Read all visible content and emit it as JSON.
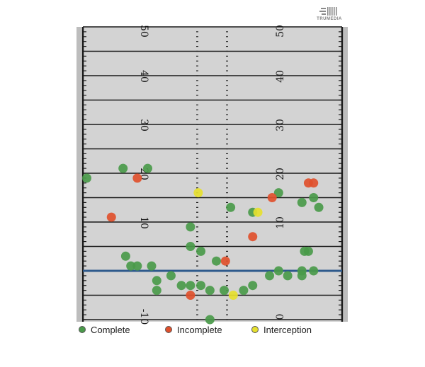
{
  "brand": {
    "name": "TRUMEDIA"
  },
  "colors": {
    "field": "#d3d3d3",
    "line": "#1a1a1a",
    "scrimmage": "#2e5a8c",
    "complete": "#4a9a4a",
    "incomplete": "#e0502c",
    "interception": "#e6e02e"
  },
  "chart_data": {
    "type": "scatter",
    "x_axis": {
      "description": "field width",
      "range": [
        -1,
        1
      ]
    },
    "y_axis": {
      "description": "yards downfield from line of scrimmage",
      "range": [
        -10,
        50
      ]
    },
    "yard_labels_left": [
      "50",
      "40",
      "30",
      "20",
      "10",
      "-10"
    ],
    "yard_labels_right": [
      "50",
      "40",
      "30",
      "20",
      "10",
      "0"
    ],
    "line_of_scrimmage": 0,
    "legend": [
      "Complete",
      "Incomplete",
      "Interception"
    ],
    "series": [
      {
        "name": "Complete",
        "points": [
          [
            -0.97,
            19.0
          ],
          [
            -0.69,
            21.0
          ],
          [
            -0.5,
            21.0
          ],
          [
            -0.67,
            3.0
          ],
          [
            -0.63,
            1.0
          ],
          [
            -0.58,
            1.0
          ],
          [
            -0.47,
            1.0
          ],
          [
            -0.43,
            -2.0
          ],
          [
            -0.43,
            -4.0
          ],
          [
            -0.32,
            -1.0
          ],
          [
            -0.24,
            -3.0
          ],
          [
            -0.17,
            -3.0
          ],
          [
            -0.09,
            -3.0
          ],
          [
            -0.17,
            5.0
          ],
          [
            -0.09,
            4.0
          ],
          [
            -0.17,
            9.0
          ],
          [
            -0.02,
            -10.0
          ],
          [
            -0.02,
            -4.0
          ],
          [
            0.03,
            2.0
          ],
          [
            0.09,
            -4.0
          ],
          [
            0.14,
            13.0
          ],
          [
            0.24,
            -4.0
          ],
          [
            0.31,
            -3.0
          ],
          [
            0.31,
            12.0
          ],
          [
            0.44,
            -1.0
          ],
          [
            0.51,
            0.0
          ],
          [
            0.51,
            16.0
          ],
          [
            0.58,
            -1.0
          ],
          [
            0.69,
            14.0
          ],
          [
            0.69,
            -1.0
          ],
          [
            0.69,
            0.0
          ],
          [
            0.71,
            4.0
          ],
          [
            0.74,
            4.0
          ],
          [
            0.78,
            15.0
          ],
          [
            0.78,
            0.0
          ],
          [
            0.82,
            13.0
          ]
        ]
      },
      {
        "name": "Incomplete",
        "points": [
          [
            -0.58,
            19.0
          ],
          [
            -0.78,
            11.0
          ],
          [
            0.1,
            2.0
          ],
          [
            0.31,
            7.0
          ],
          [
            0.46,
            15.0
          ],
          [
            0.74,
            18.0
          ],
          [
            0.78,
            18.0
          ],
          [
            -0.17,
            -5.0
          ]
        ]
      },
      {
        "name": "Interception",
        "points": [
          [
            -0.11,
            16.0
          ],
          [
            0.35,
            12.0
          ],
          [
            0.16,
            -5.0
          ]
        ]
      }
    ]
  }
}
